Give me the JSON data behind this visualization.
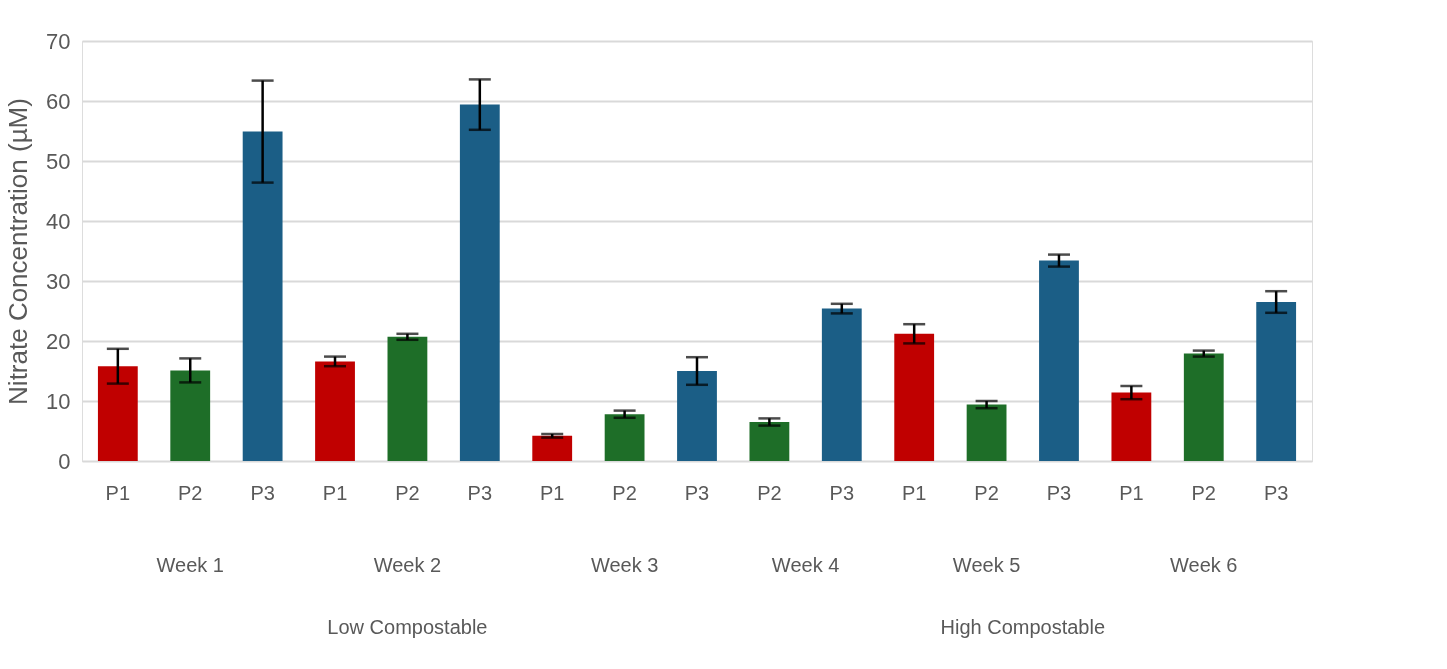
{
  "chart_data": {
    "type": "bar",
    "ylabel": "Nitrate Concentration (µM)",
    "categories": [
      "P1",
      "P2",
      "P3",
      "P1",
      "P2",
      "P3",
      "P1",
      "P2",
      "P3",
      "P2",
      "P3",
      "P1",
      "P2",
      "P3",
      "P1",
      "P2",
      "P3"
    ],
    "values": [
      15.8,
      15.1,
      54.9,
      16.6,
      20.7,
      59.4,
      4.2,
      7.8,
      15.0,
      6.5,
      25.4,
      21.2,
      9.4,
      33.4,
      11.4,
      17.9,
      26.5
    ],
    "errors": [
      2.9,
      2.0,
      8.5,
      0.8,
      0.5,
      4.2,
      0.3,
      0.6,
      2.3,
      0.6,
      0.8,
      1.6,
      0.6,
      1.0,
      1.1,
      0.5,
      1.8
    ],
    "colors": [
      "#c00000",
      "#1e6e28",
      "#1b5e86",
      "#c00000",
      "#1e6e28",
      "#1b5e86",
      "#c00000",
      "#1e6e28",
      "#1b5e86",
      "#1e6e28",
      "#1b5e86",
      "#c00000",
      "#1e6e28",
      "#1b5e86",
      "#c00000",
      "#1e6e28",
      "#1b5e86"
    ],
    "ylim": [
      0,
      70
    ],
    "yticks": [
      0,
      10,
      20,
      30,
      40,
      50,
      60,
      70
    ],
    "grid": "y",
    "annotations": [
      "Week 1",
      "Week 2",
      "Week 3",
      "Week 4",
      "Week 5",
      "Week 6",
      "Low Compostable",
      "High Compostable"
    ]
  }
}
